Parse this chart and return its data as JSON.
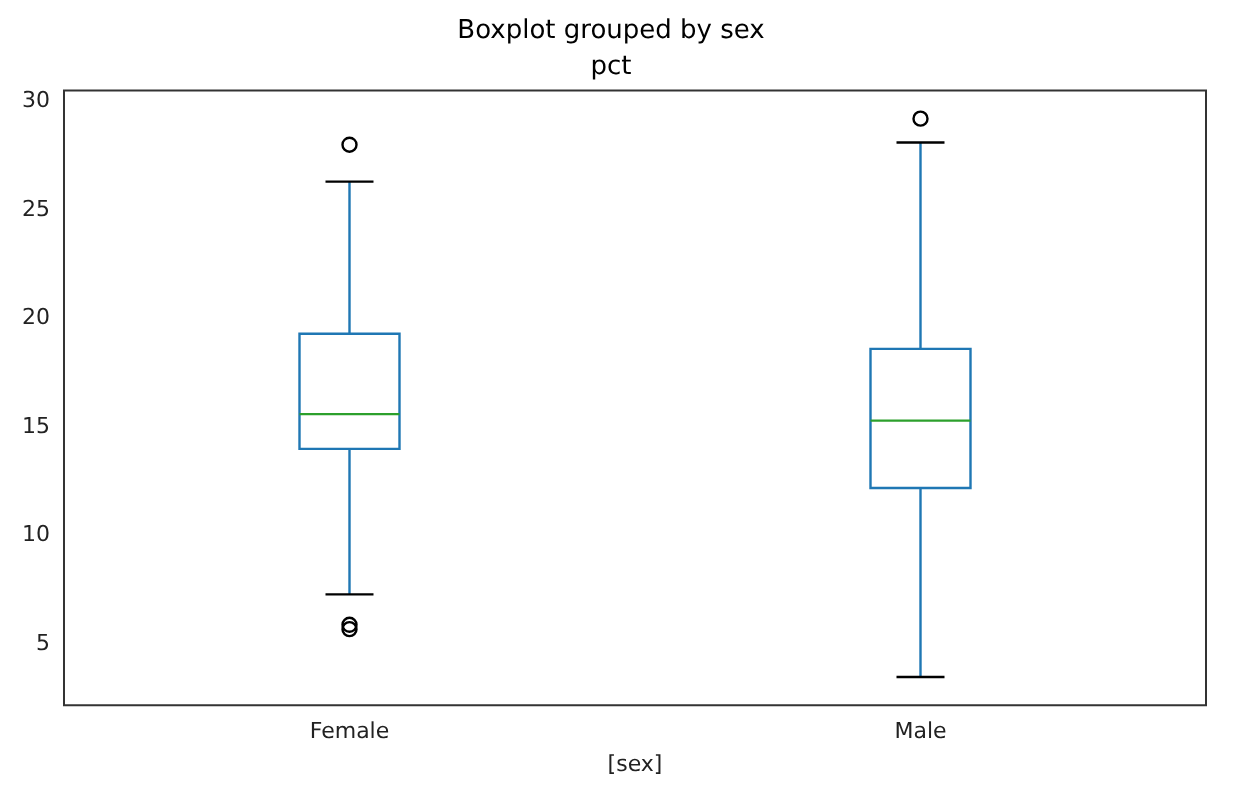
{
  "chart_data": {
    "type": "box",
    "title": "Boxplot grouped by sex",
    "subtitle": "pct",
    "xlabel": "[sex]",
    "categories": [
      "Female",
      "Male"
    ],
    "series": [
      {
        "color": "#1f77b4",
        "boxes": [
          {
            "low": 7.3,
            "q1": 14.0,
            "median": 15.6,
            "q3": 19.3,
            "high": 26.3,
            "outliers": [
              28.0,
              5.9,
              5.7
            ]
          },
          {
            "low": 3.5,
            "q1": 12.2,
            "median": 15.3,
            "q3": 18.6,
            "high": 28.1,
            "outliers": [
              29.2
            ]
          }
        ]
      }
    ],
    "ylim": [
      2.2,
      30.5
    ],
    "yticks": [
      5,
      10,
      15,
      20,
      25,
      30
    ],
    "grid": false,
    "legend": false
  }
}
